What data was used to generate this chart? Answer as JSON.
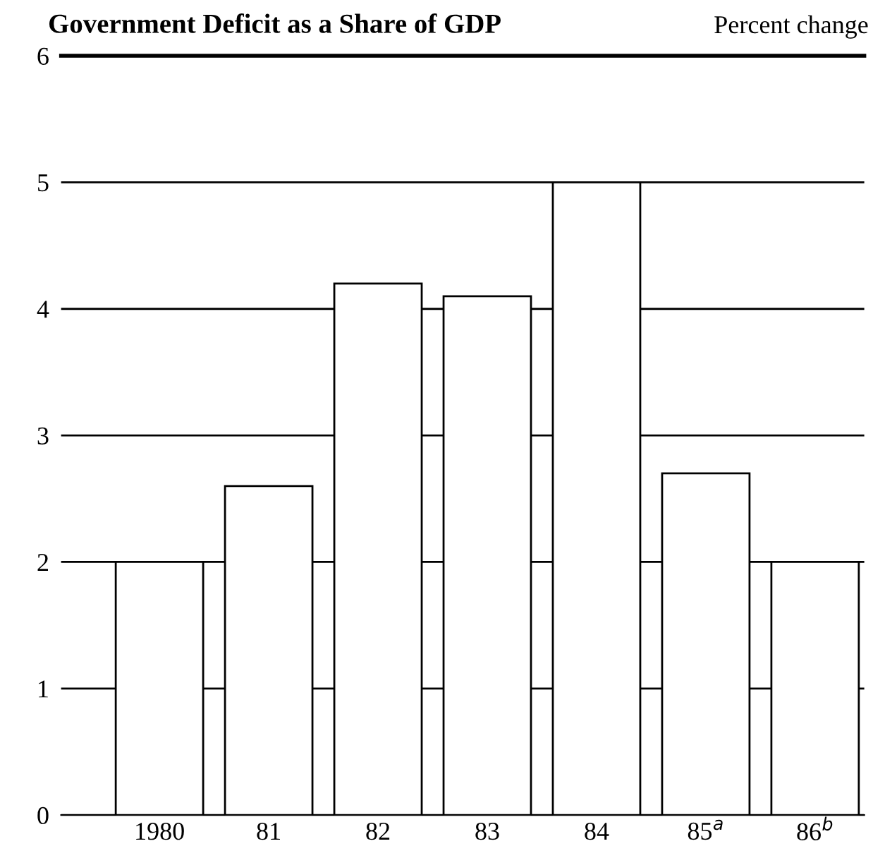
{
  "chart_data": {
    "type": "bar",
    "title": "Government Deficit as a Share of GDP",
    "ylabel": "Percent change",
    "categories": [
      "1980",
      "81",
      "82",
      "83",
      "84",
      "85$^{a}$",
      "86$^{b}$"
    ],
    "values": [
      2.0,
      2.6,
      4.2,
      4.1,
      5.0,
      2.7,
      2.0
    ],
    "color": "#ffffff",
    "ylim": [
      0,
      6
    ],
    "yticks": [
      0,
      1,
      2,
      3,
      4,
      5,
      6
    ],
    "grid": "y",
    "legend": false
  }
}
